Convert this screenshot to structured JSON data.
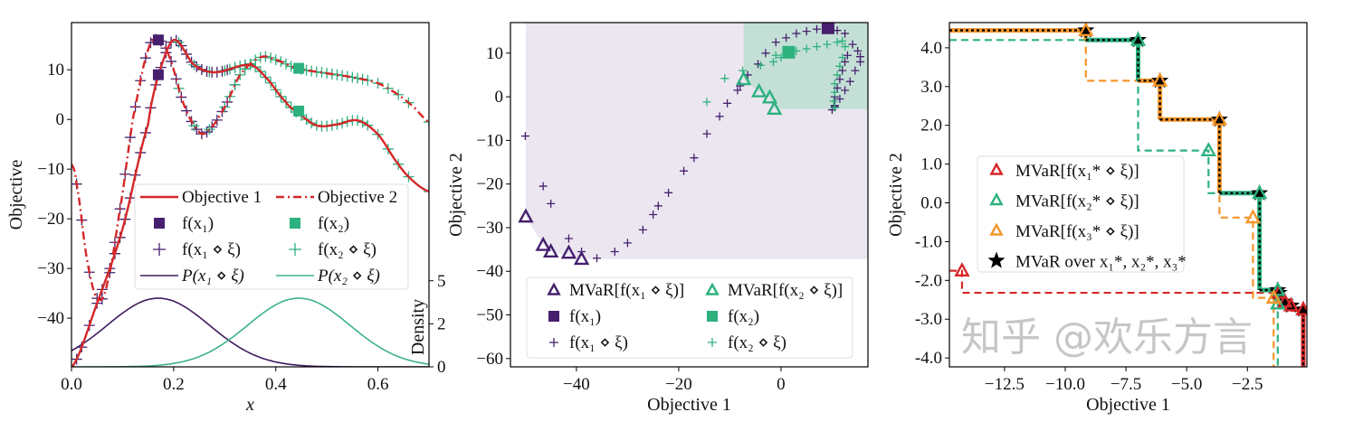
{
  "colors": {
    "red": "#d62728",
    "purple": "#46206e",
    "green": "#2db17f",
    "orange": "#f5962a",
    "black": "#000000",
    "purple_shade": "#ebe6f0",
    "green_shade": "#c4e0d6",
    "density_purple": "#3f1b5f",
    "density_green": "#3cb28a"
  },
  "watermark": "知乎 @欢乐方言",
  "chart_data": [
    {
      "type": "line",
      "xlabel": "x",
      "ylabel": "Objective",
      "y2label": "Density",
      "xlim": [
        0,
        0.7
      ],
      "ylim": [
        -49.8,
        19.5
      ],
      "y2lim": [
        0,
        20
      ],
      "xticks": [
        "0.0",
        "0.2",
        "0.4",
        "0.6"
      ],
      "xtick_values": [
        0,
        0.2,
        0.4,
        0.6
      ],
      "yticks": [
        "10",
        "0",
        "−10",
        "−20",
        "−30",
        "−40"
      ],
      "ytick_values": [
        10,
        0,
        -10,
        -20,
        -30,
        -40
      ],
      "y2ticks": [
        "0",
        "2",
        "5"
      ],
      "y2tick_values": [
        0,
        2.5,
        5
      ],
      "grid": false,
      "legend_placement": "center-right",
      "series": [
        {
          "name": "Objective 1",
          "style": "solid",
          "color": "#d62728",
          "x": [
            0,
            0.05,
            0.1,
            0.15,
            0.17,
            0.2,
            0.24,
            0.28,
            0.35,
            0.38,
            0.42,
            0.44,
            0.48,
            0.52,
            0.56,
            0.6,
            0.64,
            0.67,
            0.7
          ],
          "y": [
            -50,
            -37,
            -22,
            -1,
            9,
            16,
            11,
            9.5,
            11,
            8.5,
            3.5,
            1.5,
            -1.2,
            -1,
            -0.2,
            -3,
            -9,
            -12.5,
            -14.5
          ]
        },
        {
          "name": "Objective 2",
          "style": "dashdot",
          "color": "#d62728",
          "x": [
            0,
            0.01,
            0.03,
            0.05,
            0.07,
            0.1,
            0.12,
            0.15,
            0.17,
            0.19,
            0.22,
            0.25,
            0.27,
            0.3,
            0.33,
            0.37,
            0.4,
            0.44,
            0.5,
            0.55,
            0.6,
            0.64,
            0.67,
            0.7
          ],
          "y": [
            -9,
            -13,
            -28,
            -36,
            -33,
            -15,
            0,
            14,
            16,
            13,
            3,
            -2.5,
            -2,
            2.5,
            9,
            12.5,
            12,
            10.3,
            9.3,
            8.5,
            7.3,
            5,
            2.5,
            -0.5
          ]
        },
        {
          "name": "f(x₁)",
          "marker": "square",
          "color": "#46206e",
          "x": [
            0.17,
            0.17
          ],
          "y": [
            9,
            16
          ]
        },
        {
          "name": "f(x₂)",
          "marker": "square",
          "color": "#2db17f",
          "x": [
            0.445,
            0.445
          ],
          "y": [
            1.7,
            10.3
          ]
        },
        {
          "name": "f(x₁ ⋄ ξ)",
          "marker": "plus",
          "color": "#46206e",
          "x": [
            0.01,
            0.02,
            0.035,
            0.05,
            0.06,
            0.075,
            0.085,
            0.095,
            0.105,
            0.115,
            0.125,
            0.135,
            0.145,
            0.155,
            0.165,
            0.175,
            0.185,
            0.195,
            0.205,
            0.215,
            0.225,
            0.235,
            0.245,
            0.255,
            0.265,
            0.275,
            0.285,
            0.295,
            0.305,
            0.32,
            0.34
          ]
        },
        {
          "name": "f(x₂ ⋄ ξ)",
          "marker": "plus",
          "color": "#2db17f",
          "x": [
            0.21,
            0.24,
            0.27,
            0.3,
            0.31,
            0.32,
            0.33,
            0.34,
            0.35,
            0.36,
            0.37,
            0.38,
            0.39,
            0.4,
            0.41,
            0.42,
            0.43,
            0.44,
            0.45,
            0.46,
            0.47,
            0.48,
            0.49,
            0.5,
            0.51,
            0.52,
            0.53,
            0.54,
            0.55,
            0.56,
            0.57,
            0.58,
            0.6,
            0.62,
            0.64,
            0.66,
            0.7
          ]
        },
        {
          "name": "P(x₁ ⋄ ξ)",
          "type": "density",
          "color": "#3f1b5f",
          "mean": 0.17,
          "sd": 0.1
        },
        {
          "name": "P(x₂ ⋄ ξ)",
          "type": "density",
          "color": "#3cb28a",
          "mean": 0.445,
          "sd": 0.1
        }
      ]
    },
    {
      "type": "scatter",
      "xlabel": "Objective 1",
      "ylabel": "Objective 2",
      "xlim": [
        -52.9,
        17
      ],
      "ylim": [
        -61.9,
        17
      ],
      "xticks": [
        "−40",
        "−20",
        "0"
      ],
      "xtick_values": [
        -40,
        -20,
        0
      ],
      "yticks": [
        "10",
        "0",
        "−10",
        "−20",
        "−30",
        "−40",
        "−50",
        "−60"
      ],
      "ytick_values": [
        10,
        0,
        -10,
        -20,
        -30,
        -40,
        -50,
        -60
      ],
      "grid": false,
      "legend_placement": "lower-center",
      "series": [
        {
          "name": "MVaR[f(x₁ ⋄ ξ)]",
          "marker": "triangle",
          "color": "#46206e",
          "x": [
            -49.9,
            -46.5,
            -45,
            -41.5,
            -39
          ],
          "y": [
            -27.5,
            -34,
            -35.5,
            -35.8,
            -37.2
          ]
        },
        {
          "name": "MVaR[f(x₂ ⋄ ξ)]",
          "marker": "triangle",
          "color": "#2db17f",
          "x": [
            -7.3,
            -4.3,
            -2.2,
            -1.3
          ],
          "y": [
            4,
            1.2,
            -0.2,
            -2.8
          ]
        },
        {
          "name": "f(x₁)",
          "marker": "square",
          "color": "#46206e",
          "x": [
            9.2
          ],
          "y": [
            15.8
          ]
        },
        {
          "name": "f(x₂)",
          "marker": "square",
          "color": "#2db17f",
          "x": [
            1.5
          ],
          "y": [
            10.2
          ]
        },
        {
          "name": "f(x₁ ⋄ ξ)",
          "marker": "plus",
          "color": "#46206e",
          "x": [
            -50,
            -46.5,
            -45,
            -41.5,
            -39,
            -36,
            -32.5,
            -30,
            -27,
            -25,
            -24,
            -22,
            -19,
            -17,
            -14.5,
            -12,
            -10.5,
            -8.5,
            -8,
            -6.5,
            -4.5,
            -3,
            -1,
            1,
            3,
            5,
            7,
            11,
            12.5,
            14,
            15,
            15.5,
            15.5,
            14.5,
            13.5,
            12.5,
            11.5,
            10.5,
            10,
            10.5,
            10.5,
            11,
            11.5,
            12,
            12.5,
            13
          ],
          "y": [
            -9,
            -20.5,
            -24.5,
            -32.5,
            -35.5,
            -37,
            -35.5,
            -33.5,
            -30.5,
            -27,
            -25,
            -22,
            -17,
            -14,
            -8.5,
            -4.5,
            -1.5,
            1.5,
            2.5,
            5,
            7.5,
            10,
            12.5,
            13.5,
            14.5,
            15,
            15.5,
            15.2,
            14.5,
            12,
            10.5,
            9.2,
            8,
            6,
            3.5,
            1.5,
            -0.5,
            -2.3,
            -3,
            -2,
            0,
            2,
            4,
            6,
            8,
            9.5
          ]
        },
        {
          "name": "f(x₂ ⋄ ξ)",
          "marker": "plus",
          "color": "#2db17f",
          "x": [
            -14.5,
            -11,
            -7.5,
            -4,
            -1.5,
            -1,
            0,
            3,
            5,
            7,
            9,
            11,
            12,
            12.5,
            12,
            11.5,
            11,
            10.5,
            10.5,
            10.3,
            10.5
          ],
          "y": [
            -1.2,
            4.2,
            6,
            7.2,
            8,
            9.5,
            9,
            10.5,
            11,
            11.5,
            12,
            12.5,
            12.8,
            11.5,
            9,
            7,
            5,
            3,
            1,
            -1,
            -2.5
          ]
        }
      ],
      "regions": [
        {
          "name": "dominated by MVaR[f(x₁ ⋄ ξ)]",
          "color": "#ebe6f0"
        },
        {
          "name": "dominated by MVaR[f(x₂ ⋄ ξ)]",
          "color": "#c4e0d6"
        }
      ]
    },
    {
      "type": "line",
      "xlabel": "Objective 1",
      "ylabel": "Objective 2",
      "xlim": [
        -14.77,
        -0.05
      ],
      "ylim": [
        -4.23,
        4.65
      ],
      "xticks": [
        "−12.5",
        "−10.0",
        "−7.5",
        "−5.0",
        "−2.5"
      ],
      "xtick_values": [
        -12.5,
        -10,
        -7.5,
        -5,
        -2.5
      ],
      "yticks": [
        "4.0",
        "3.0",
        "2.0",
        "1.0",
        "0.0",
        "-1.0",
        "-2.0",
        "-3.0",
        "-4.0"
      ],
      "ytick_values": [
        4,
        3,
        2,
        1,
        0,
        -1,
        -2,
        -3,
        -4
      ],
      "grid": false,
      "legend_placement": "center-left",
      "series": [
        {
          "name": "MVaR[f(x₁* ⋄ ξ)]",
          "marker": "triangle",
          "style": "dashed",
          "color": "#d62728",
          "x": [
            -14.25,
            -1.2,
            -0.95,
            -0.7,
            -0.2
          ],
          "y": [
            -1.75,
            -2.32,
            -2.55,
            -2.65,
            -2.75
          ]
        },
        {
          "name": "MVaR[f(x₂* ⋄ ξ)]",
          "marker": "triangle",
          "style": "dashed",
          "color": "#2db17f",
          "x": [
            -7.0,
            -4.1,
            -2.0,
            -1.25,
            -1.25
          ],
          "y": [
            4.2,
            1.35,
            0.25,
            -2.25,
            -2.6
          ]
        },
        {
          "name": "MVaR[f(x₃* ⋄ ξ)]",
          "marker": "triangle",
          "style": "dashed",
          "color": "#f5962a",
          "x": [
            -9.15,
            -6.1,
            -3.65,
            -2.27,
            -1.42
          ],
          "y": [
            4.45,
            3.15,
            2.15,
            -0.38,
            -2.45
          ]
        },
        {
          "name": "MVaR over x₁*, x₂*, x₃*",
          "marker": "star",
          "color": "#000000",
          "x": [
            -9.15,
            -7.0,
            -6.1,
            -3.65,
            -2.0,
            -1.25,
            -1.2,
            -0.95,
            -0.7,
            -0.2
          ],
          "y": [
            4.45,
            4.2,
            3.15,
            2.15,
            0.25,
            -2.25,
            -2.32,
            -2.55,
            -2.65,
            -2.75
          ],
          "source": [
            "x3",
            "x2",
            "x3",
            "x3",
            "x2",
            "x2",
            "x1",
            "x1",
            "x1",
            "x1"
          ]
        }
      ]
    }
  ]
}
